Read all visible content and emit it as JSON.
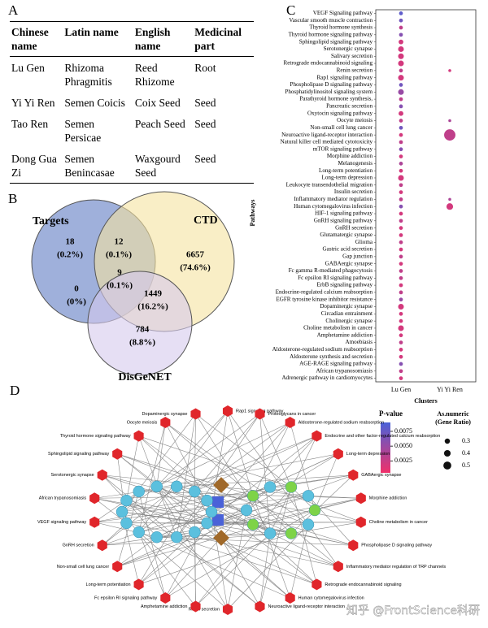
{
  "panels": {
    "A": "A",
    "B": "B",
    "C": "C",
    "D": "D"
  },
  "table": {
    "headers": [
      "Chinese name",
      "Latin name",
      "English name",
      "Medicinal part"
    ],
    "rows": [
      [
        "Lu Gen",
        "Rhizoma Phragmitis",
        "Reed Rhizome",
        "Root"
      ],
      [
        "Yi Yi Ren",
        "Semen Coicis",
        "Coix Seed",
        "Seed"
      ],
      [
        "Tao Ren",
        "Semen Persicae",
        "Peach Seed",
        "Seed"
      ],
      [
        "Dong Gua Zi",
        "Semen Benincasae",
        "Waxgourd Seed",
        "Seed"
      ]
    ]
  },
  "venn": {
    "sets": [
      "Targets",
      "CTD",
      "DisGeNET"
    ],
    "regions": [
      {
        "count": 18,
        "percent": "(0.2%)"
      },
      {
        "count": 12,
        "percent": "(0.1%)"
      },
      {
        "count": 6657,
        "percent": "(74.6%)"
      },
      {
        "count": 9,
        "percent": "(0.1%)"
      },
      {
        "count": 0,
        "percent": "(0%)"
      },
      {
        "count": 1449,
        "percent": "(16.2%)"
      },
      {
        "count": 784,
        "percent": "(8.8%)"
      }
    ]
  },
  "chart_data": {
    "type": "dotplot",
    "x_label": "Clusters",
    "y_label": "Pathways",
    "categories": [
      "VEGF Signaling pathway",
      "Vascular smooth muscle contraction",
      "Thyroid hormone synthesis",
      "Thyroid hormone signaling pathway",
      "Sphingolipid signaling pathway",
      "Serotonergic synapse",
      "Salivary secretion",
      "Retrograde endocannabinoid signaling",
      "Renin secretion",
      "Rap1 signaling pathway",
      "Phospholipase D signaling pathway",
      "Phosphatidylinositol signaling system",
      "Parathyroid hormone synthesis,",
      "Pancreatic secretion",
      "Oxytocin signaling pathway",
      "Oocyte meiosis",
      "Non-small cell lung cancer",
      "Neuroactive ligand-receptor interaction",
      "Natural killer cell mediated cytotoxicity",
      "mTOR signaling pathway",
      "Morphine addiction",
      "Melanogenesis",
      "Long-term potentiation",
      "Long-term depression",
      "Leukocyte transendothelial migration",
      "Insulin secretion",
      "Inflammatory mediator regulation",
      "Human cytomegalovirus infection",
      "HIF-1 signaling pathway",
      "GnRH signaling pathway",
      "GnRH secretion",
      "Glutamatergic synapse",
      "Glioma",
      "Gastric acid secretion",
      "Gap junction",
      "GABAergic synapse",
      "Fc gamma R-mediated phagocytosis",
      "Fc epsilon RI signaling pathway",
      "ErbB signaling pathway",
      "Endocrine-regulated calcium reabsorption",
      "EGFR tyrosine kinase inhibitor resistance",
      "Dopaminergic synapse",
      "Circadian entrainment",
      "Cholinergic synapse",
      "Choline metabolism in cancer",
      "Amphetamine addiction",
      "Amoebiasis",
      "Aldosterone-regulated sodium reabsorption",
      "Aldosterone synthesis and secretion",
      "AGE-RAGE signaling pathway",
      "African trypanosomiasis",
      "Adrenergic pathway in cardiomyocytes"
    ],
    "series": [
      {
        "name": "Lu Gen",
        "values": [
          0.1,
          0.1,
          0.1,
          0.1,
          0.15,
          0.2,
          0.2,
          0.2,
          0.1,
          0.2,
          0.1,
          0.2,
          0.1,
          0.1,
          0.15,
          0.1,
          0.1,
          0.1,
          0.1,
          0.1,
          0.1,
          0.1,
          0.1,
          0.2,
          0.1,
          0.1,
          0.1,
          0.1,
          0.1,
          0.1,
          0.1,
          0.1,
          0.1,
          0.1,
          0.1,
          0.1,
          0.1,
          0.1,
          0.1,
          0.1,
          0.1,
          0.2,
          0.1,
          0.1,
          0.2,
          0.1,
          0.1,
          0.1,
          0.1,
          0.1,
          0.1,
          0.1
        ],
        "p_values": [
          0.008,
          0.007,
          0.003,
          0.006,
          0.002,
          0.002,
          0.002,
          0.002,
          0.003,
          0.002,
          0.007,
          0.005,
          0.003,
          0.006,
          0.002,
          0.003,
          0.007,
          0.002,
          0.003,
          0.006,
          0.002,
          0.004,
          0.002,
          0.002,
          0.003,
          0.002,
          0.003,
          0.006,
          0.002,
          0.003,
          0.002,
          0.002,
          0.003,
          0.002,
          0.003,
          0.002,
          0.003,
          0.003,
          0.002,
          0.003,
          0.005,
          0.002,
          0.002,
          0.002,
          0.002,
          0.002,
          0.003,
          0.002,
          0.002,
          0.006,
          0.003,
          0.002
        ]
      },
      {
        "name": "Yi Yi Ren",
        "values": [
          null,
          null,
          null,
          null,
          null,
          null,
          null,
          null,
          0.05,
          null,
          null,
          null,
          null,
          null,
          null,
          0.05,
          null,
          0.5,
          null,
          null,
          null,
          null,
          null,
          null,
          null,
          null,
          0.05,
          0.25,
          null,
          null,
          null,
          null,
          null,
          null,
          null,
          null,
          null,
          null,
          null,
          null,
          null,
          null,
          null,
          null,
          null,
          null,
          null,
          null,
          null,
          null,
          null,
          null
        ],
        "p_values": [
          null,
          null,
          null,
          null,
          null,
          null,
          null,
          null,
          0.002,
          null,
          null,
          null,
          null,
          null,
          null,
          0.004,
          null,
          0.003,
          null,
          null,
          null,
          null,
          null,
          null,
          null,
          null,
          0.004,
          0.002,
          null,
          null,
          null,
          null,
          null,
          null,
          null,
          null,
          null,
          null,
          null,
          null,
          null,
          null,
          null,
          null,
          null,
          null,
          null,
          null,
          null,
          null,
          null,
          null
        ]
      }
    ],
    "color_title": "P-value",
    "color_lim": [
      0.0005,
      0.009
    ],
    "colorscale": [
      "#f0306a",
      "#4a62d8"
    ],
    "color_ticks": [
      0.0075,
      {
        "value": 0.005,
        "label": "0.0050"
      },
      0.0025
    ],
    "size_title": [
      "As.numeric",
      "(Gene Ratio)"
    ],
    "size_ticks": [
      0.3,
      0.4,
      0.5
    ]
  },
  "network": {
    "pathways": [
      "Rap1 signaling pathway",
      "Proteoglycans in cancer",
      "Aldosterone-regulated sodium reabsorption",
      "Endocrine and other factor-regulated calcium reabsorption",
      "Long-term depression",
      "GABAergic synapse",
      "Morphine addiction",
      "Choline metabolism in cancer",
      "Phospholipase D signaling pathway",
      "Inflammatory mediator regulation of TRP channels",
      "Retrograde endocannabinoid signaling",
      "Human cytomegalovirus infection",
      "Neuroactive ligand-receptor interaction",
      "Renin secretion",
      "Amphetamine addiction",
      "Fc epsilon RI signaling pathway",
      "Long-term potentiation",
      "Non-small cell lung cancer",
      "GnRH secretion",
      "VEGF signaling pathway",
      "African trypanosomiasis",
      "Serotonergic synapse",
      "Sphingolipid signaling pathway",
      "Thyroid hormone signaling pathway",
      "Oocyte meiosis",
      "Dopaminergic synapse"
    ]
  },
  "watermark": "知乎 @FrontScience科研"
}
